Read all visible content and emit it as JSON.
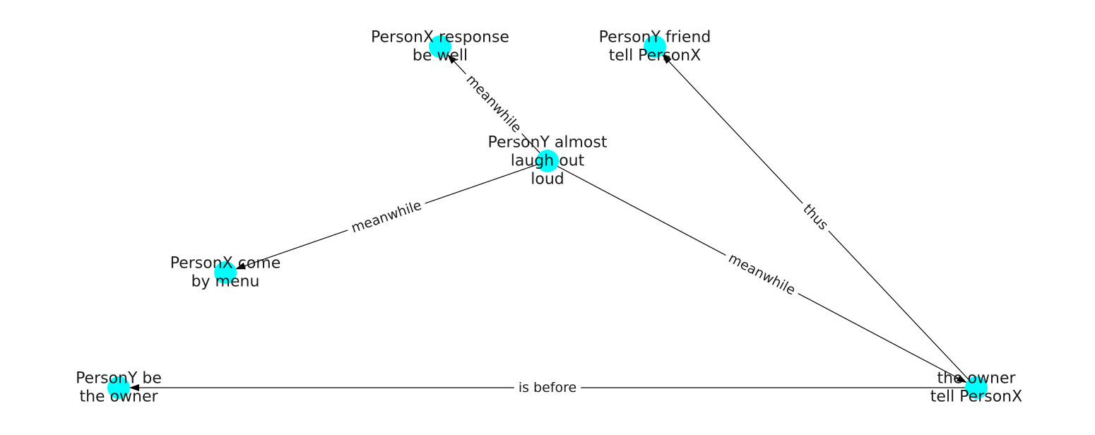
{
  "colors": {
    "node": "#00ffff",
    "edge": "#000000",
    "text": "#1a1a1a"
  },
  "nodes": [
    {
      "id": "n_response",
      "lines": [
        "PersonX response",
        "be well"
      ]
    },
    {
      "id": "n_friend",
      "lines": [
        "PersonY friend",
        "tell PersonX"
      ]
    },
    {
      "id": "n_laugh",
      "lines": [
        "PersonY almost",
        "laugh out",
        "loud"
      ]
    },
    {
      "id": "n_menu",
      "lines": [
        "PersonX come",
        "by menu"
      ]
    },
    {
      "id": "n_beowner",
      "lines": [
        "PersonY be",
        "the owner"
      ]
    },
    {
      "id": "n_owner",
      "lines": [
        "the owner",
        "tell PersonX"
      ]
    }
  ],
  "edges": [
    {
      "id": "e1",
      "source": "n_laugh",
      "target": "n_response",
      "label": "meanwhile"
    },
    {
      "id": "e2",
      "source": "n_laugh",
      "target": "n_menu",
      "label": "meanwhile"
    },
    {
      "id": "e3",
      "source": "n_laugh",
      "target": "n_owner",
      "label": "meanwhile"
    },
    {
      "id": "e4",
      "source": "n_owner",
      "target": "n_friend",
      "label": "thus"
    },
    {
      "id": "e5",
      "source": "n_owner",
      "target": "n_beowner",
      "label": "is before"
    }
  ]
}
